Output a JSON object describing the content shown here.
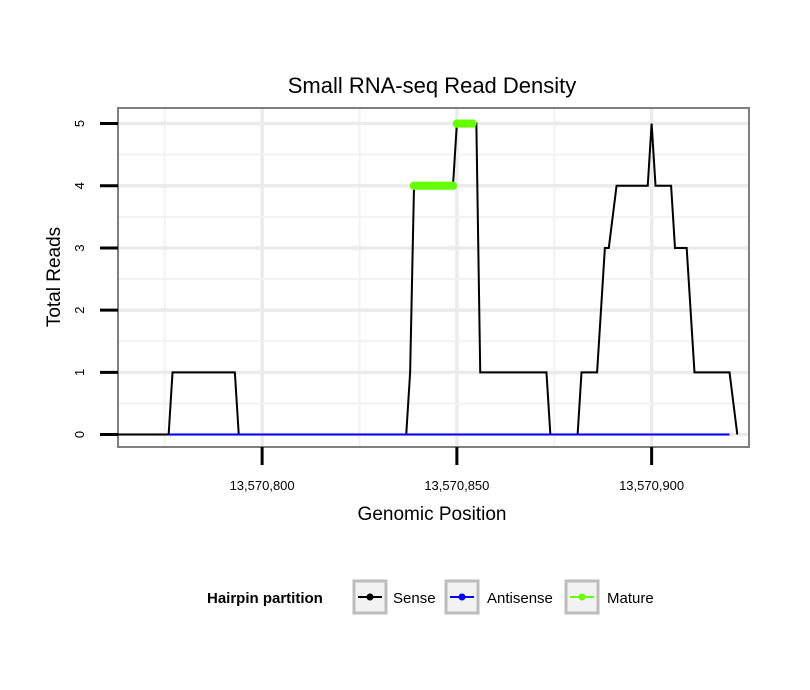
{
  "chart_data": {
    "type": "line",
    "title": "Small RNA-seq Read Density",
    "xlabel": "Genomic Position",
    "ylabel": "Total Reads",
    "xlim": [
      13570763,
      13570925
    ],
    "ylim": [
      -0.2,
      5.25
    ],
    "x_ticks": [
      {
        "value": 13570800,
        "label": "13,570,800"
      },
      {
        "value": 13570850,
        "label": "13,570,850"
      },
      {
        "value": 13570900,
        "label": "13,570,900"
      }
    ],
    "y_ticks": [
      {
        "value": 0,
        "label": "0"
      },
      {
        "value": 1,
        "label": "1"
      },
      {
        "value": 2,
        "label": "2"
      },
      {
        "value": 3,
        "label": "3"
      },
      {
        "value": 4,
        "label": "4"
      },
      {
        "value": 5,
        "label": "5"
      }
    ],
    "grid": true,
    "legend": {
      "title": "Hairpin partition",
      "position": "bottom",
      "entries": [
        {
          "name": "Sense",
          "color": "#000000"
        },
        {
          "name": "Antisense",
          "color": "#0000ff"
        },
        {
          "name": "Mature",
          "color": "#66ff00"
        }
      ]
    },
    "series": [
      {
        "name": "Sense",
        "color": "#000000",
        "points": [
          [
            13570763,
            0
          ],
          [
            13570776,
            0
          ],
          [
            13570777,
            1
          ],
          [
            13570787,
            1
          ],
          [
            13570793,
            1
          ],
          [
            13570794,
            0
          ],
          [
            13570800,
            0
          ],
          [
            13570837,
            0
          ],
          [
            13570838,
            1
          ],
          [
            13570839,
            4
          ],
          [
            13570849,
            4
          ],
          [
            13570850,
            5
          ],
          [
            13570855,
            5
          ],
          [
            13570856,
            1
          ],
          [
            13570866,
            1
          ],
          [
            13570873,
            1
          ],
          [
            13570874,
            0
          ],
          [
            13570881,
            0
          ],
          [
            13570882,
            1
          ],
          [
            13570886,
            1
          ],
          [
            13570888,
            3
          ],
          [
            13570889,
            3
          ],
          [
            13570891,
            4
          ],
          [
            13570899,
            4
          ],
          [
            13570900,
            5
          ],
          [
            13570901,
            4
          ],
          [
            13570905,
            4
          ],
          [
            13570906,
            3
          ],
          [
            13570909,
            3
          ],
          [
            13570911,
            1
          ],
          [
            13570920,
            1
          ],
          [
            13570922,
            0
          ]
        ]
      },
      {
        "name": "Antisense",
        "color": "#0000ff",
        "points": [
          [
            13570776,
            0
          ],
          [
            13570920,
            0
          ]
        ]
      },
      {
        "name": "Mature",
        "color": "#66ff00",
        "points": [
          [
            13570839,
            4
          ],
          [
            13570840,
            4
          ],
          [
            13570841,
            4
          ],
          [
            13570842,
            4
          ],
          [
            13570843,
            4
          ],
          [
            13570844,
            4
          ],
          [
            13570845,
            4
          ],
          [
            13570846,
            4
          ],
          [
            13570847,
            4
          ],
          [
            13570848,
            4
          ],
          [
            13570849,
            4
          ],
          [
            13570850,
            5
          ],
          [
            13570851,
            5
          ],
          [
            13570852,
            5
          ],
          [
            13570853,
            5
          ],
          [
            13570854,
            5
          ]
        ]
      }
    ]
  }
}
